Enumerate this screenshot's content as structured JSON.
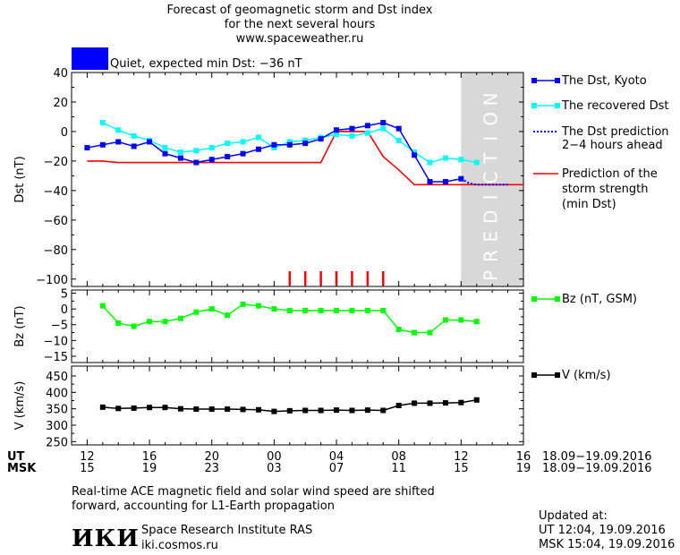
{
  "header": {
    "title_line1": "Forecast of geomagnetic storm and Dst index",
    "title_line2": "for the next several hours",
    "site": "www.spaceweather.ru",
    "status": "Quiet, expected min Dst: −36 nT",
    "status_color": "#0000ff"
  },
  "colors": {
    "dst_kyoto": "#0000ff",
    "dst_recovered": "#00ffff",
    "dst_prediction": "#0000ff",
    "storm_strength": "#ff0000",
    "bz": "#00ff00",
    "v": "#000000",
    "prediction_band": "#d8d8d8"
  },
  "prediction_word": "PREDICTION",
  "chart_data": [
    {
      "type": "line",
      "ylabel": "Dst (nT)",
      "ylim": [
        -105,
        40
      ],
      "yticks": [
        40,
        20,
        0,
        -20,
        -40,
        -60,
        -80,
        -100
      ],
      "prediction_band_hours": [
        12,
        16
      ],
      "series": [
        {
          "name": "The Dst, Kyoto",
          "x": [
            -12,
            -11,
            -10,
            -9,
            -8,
            -7,
            -6,
            -5,
            -4,
            -3,
            -2,
            -1,
            0,
            1,
            2,
            3,
            4,
            5,
            6,
            7,
            8,
            9,
            10,
            11,
            12
          ],
          "y": [
            -11,
            -9,
            -7,
            -10,
            -7,
            -15,
            -18,
            -21,
            -19,
            -17,
            -15,
            -12,
            -9,
            -9,
            -8,
            -5,
            1,
            2,
            4,
            6,
            2,
            -16,
            -34,
            -34,
            -32
          ]
        },
        {
          "name": "The recovered Dst",
          "x": [
            -11,
            -10,
            -9,
            -8,
            -7,
            -6,
            -5,
            -4,
            -3,
            -2,
            -1,
            0,
            1,
            2,
            3,
            4,
            5,
            6,
            7,
            8,
            9,
            10,
            11,
            12,
            13
          ],
          "y": [
            6,
            1,
            -3,
            -6,
            -11,
            -14,
            -13,
            -11,
            -8,
            -7,
            -4,
            -11,
            -7,
            -6,
            -4,
            -2,
            -3,
            -1,
            2,
            -6,
            -14,
            -21,
            -18,
            -19,
            -21
          ]
        },
        {
          "name": "The Dst prediction 2–4 hours ahead",
          "x": [
            12,
            12.5,
            13,
            14,
            15
          ],
          "y": [
            -32,
            -35,
            -36,
            -36,
            -36
          ]
        },
        {
          "name": "Prediction of the storm strength (min Dst)",
          "x": [
            -12,
            -11,
            -10,
            -9,
            -8,
            -7,
            -6,
            -5,
            -4,
            -3,
            -2,
            -1,
            0,
            1,
            2,
            3,
            4,
            5,
            6,
            7,
            8,
            9,
            10,
            11,
            12,
            13,
            14,
            15,
            16
          ],
          "y": [
            -20,
            -20,
            -21,
            -21,
            -21,
            -21,
            -21,
            -21,
            -21,
            -21,
            -21,
            -21,
            -21,
            -21,
            -21,
            -21,
            0,
            0,
            0,
            -17,
            -26,
            -36,
            -36,
            -36,
            -36,
            -36,
            -36,
            -36,
            -36
          ]
        }
      ],
      "event_markers_x": [
        1,
        2,
        3,
        4,
        5,
        6,
        7
      ]
    },
    {
      "type": "line",
      "ylabel": "Bz (nT)",
      "ylim": [
        -17,
        6
      ],
      "yticks": [
        5,
        0,
        -5,
        -10,
        -15
      ],
      "series": [
        {
          "name": "Bz (nT, GSM)",
          "x": [
            -11,
            -10,
            -9,
            -8,
            -7,
            -6,
            -5,
            -4,
            -3,
            -2,
            -1,
            0,
            1,
            2,
            3,
            4,
            5,
            6,
            7,
            8,
            9,
            10,
            11,
            12,
            13
          ],
          "y": [
            1,
            -4.5,
            -5.5,
            -4,
            -4,
            -3,
            -1,
            0,
            -2,
            1.5,
            1,
            0,
            -0.5,
            -0.5,
            -0.5,
            -0.5,
            -0.5,
            -0.5,
            -0.5,
            -6.5,
            -7.5,
            -7.5,
            -3.5,
            -3.5,
            -4
          ]
        }
      ]
    },
    {
      "type": "line",
      "ylabel": "V (km/s)",
      "ylim": [
        240,
        480
      ],
      "yticks": [
        450,
        400,
        350,
        300,
        250
      ],
      "series": [
        {
          "name": "V (km/s)",
          "x": [
            -11,
            -10,
            -9,
            -8,
            -7,
            -6,
            -5,
            -4,
            -3,
            -2,
            -1,
            0,
            1,
            2,
            3,
            4,
            5,
            6,
            7,
            8,
            9,
            10,
            11,
            12,
            13
          ],
          "y": [
            355,
            351,
            352,
            354,
            354,
            350,
            349,
            349,
            349,
            348,
            347,
            342,
            344,
            345,
            345,
            346,
            345,
            346,
            345,
            360,
            367,
            367,
            368,
            369,
            377
          ]
        }
      ]
    }
  ],
  "xaxis": {
    "ut_label": "UT",
    "msk_label": "MSK",
    "ut_ticks": [
      "12",
      "16",
      "20",
      "00",
      "04",
      "08",
      "12",
      "16"
    ],
    "msk_ticks": [
      "15",
      "19",
      "23",
      "03",
      "07",
      "11",
      "15",
      "19"
    ],
    "tick_hours": [
      -12,
      -8,
      -4,
      0,
      4,
      8,
      12,
      16
    ],
    "date_range": "18.09−19.09.2016"
  },
  "legend": {
    "dst_kyoto": "The Dst, Kyoto",
    "dst_recovered": "The recovered Dst",
    "dst_pred_1": "The Dst prediction",
    "dst_pred_2": "2−4 hours ahead",
    "storm_1": "Prediction of the",
    "storm_2": "storm strength",
    "storm_3": "(min Dst)",
    "bz": "Bz (nT, GSM)",
    "v": "V (km/s)"
  },
  "footer": {
    "note_1": "Real-time ACE magnetic field and solar wind speed are shifted",
    "note_2": "forward, accounting for L1-Earth propagation",
    "logo": "ИКИ",
    "institute": "Space Research Institute RAS",
    "site": "iki.cosmos.ru",
    "updated_label": "Updated at:",
    "updated_ut": "UT   12:04, 19.09.2016",
    "updated_msk": "MSK 15:04, 19.09.2016"
  }
}
